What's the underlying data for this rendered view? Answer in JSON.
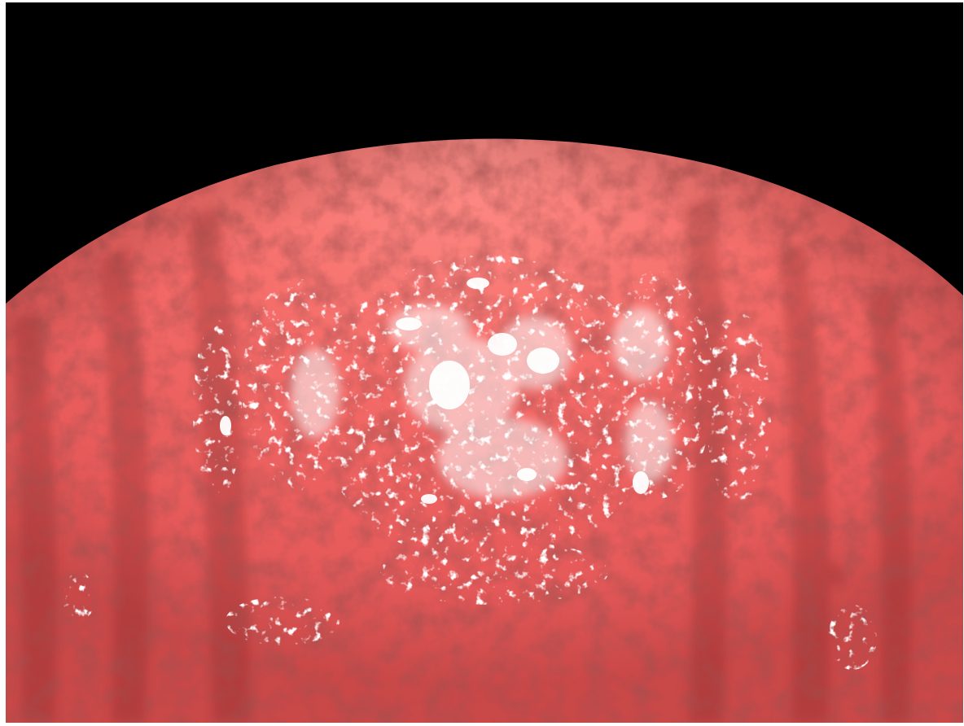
{
  "image": {
    "subject": "planet",
    "background_color": "#000000",
    "planet_base_color": "#e85b5b",
    "planet_highlight_color": "#ff8a85",
    "shadow_color": "#8a2f2f",
    "bright_spot_color": "#ffffff"
  }
}
